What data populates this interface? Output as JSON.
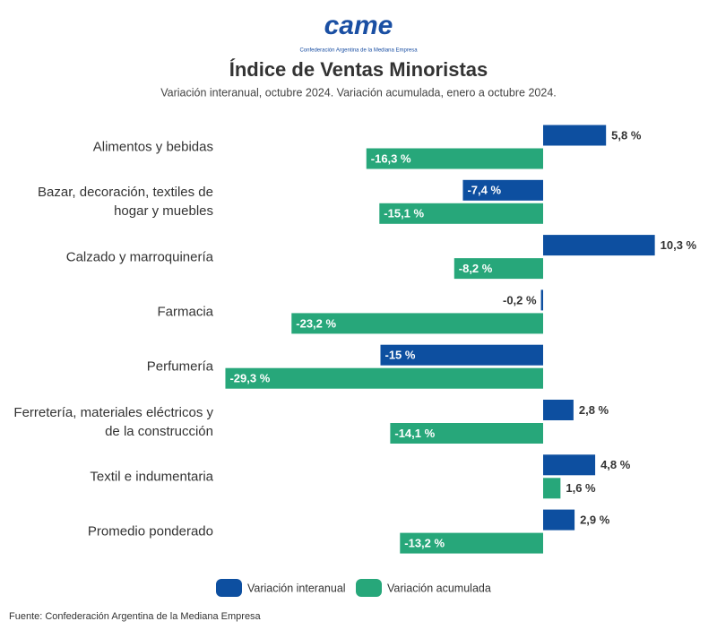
{
  "chart_data": {
    "type": "bar",
    "orientation": "horizontal",
    "logo_text": "came",
    "logo_subtitle": "Confederación Argentina de la Mediana Empresa",
    "title": "Índice de Ventas Minoristas",
    "subtitle": "Variación interanual, octubre 2024. Variación acumulada, enero a octubre 2024.",
    "categories": [
      "Alimentos y bebidas",
      "Bazar, decoración, textiles de hogar y muebles",
      "Calzado y marroquinería",
      "Farmacia",
      "Perfumería",
      "Ferretería, materiales eléctricos y de la construcción",
      "Textil e indumentaria",
      "Promedio ponderado"
    ],
    "series": [
      {
        "name": "Variación interanual",
        "color": "#0d4fa0",
        "values": [
          5.8,
          -7.4,
          10.3,
          -0.2,
          -15,
          2.8,
          4.8,
          2.9
        ],
        "value_labels": [
          "5,8 %",
          "-7,4 %",
          "10,3 %",
          "-0,2 %",
          "-15 %",
          "2,8 %",
          "4,8 %",
          "2,9 %"
        ]
      },
      {
        "name": "Variación acumulada",
        "color": "#27a77a",
        "values": [
          -16.3,
          -15.1,
          -8.2,
          -23.2,
          -29.3,
          -14.1,
          1.6,
          -13.2
        ],
        "value_labels": [
          "-16,3 %",
          "-15,1 %",
          "-8,2 %",
          "-23,2 %",
          "-29,3 %",
          "-14,1 %",
          "1,6 %",
          "-13,2 %"
        ]
      }
    ],
    "source": "Fuente: Confederación Argentina de la Mediana Empresa"
  }
}
